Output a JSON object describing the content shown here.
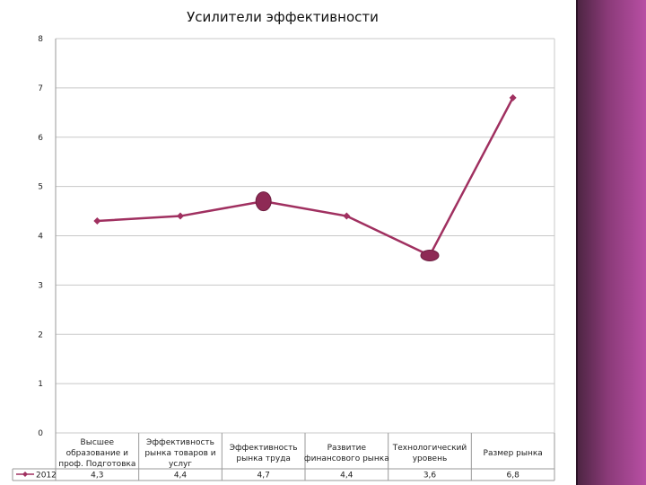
{
  "chart_data": {
    "type": "line",
    "title": "Усилители эффективности",
    "xlabel": "",
    "ylabel": "",
    "ylim": [
      0,
      8
    ],
    "yticks": [
      0,
      1,
      2,
      3,
      4,
      5,
      6,
      7,
      8
    ],
    "grid": true,
    "legend": "bottom-left (data table)",
    "categories": [
      [
        "Высшее",
        "образование и",
        "проф. Подготовка"
      ],
      [
        "Эффективность",
        "рынка товаров и",
        "услуг"
      ],
      [
        "Эффективность",
        "рынка труда"
      ],
      [
        "Развитие",
        "финансового рынка"
      ],
      [
        "Технологический",
        "уровень"
      ],
      [
        "Размер рынка"
      ]
    ],
    "series": [
      {
        "name": "2012",
        "values": [
          4.3,
          4.4,
          4.7,
          4.4,
          3.6,
          6.8
        ],
        "value_labels": [
          "4,3",
          "4,4",
          "4,7",
          "4,4",
          "3,6",
          "6,8"
        ],
        "color": "#a03060",
        "highlighted_points": [
          2,
          4
        ]
      }
    ]
  },
  "colors": {
    "series": "#a03060",
    "grid": "#c8c8c8",
    "axis": "#9a9a9a",
    "side_panel": "#8a3a78"
  }
}
